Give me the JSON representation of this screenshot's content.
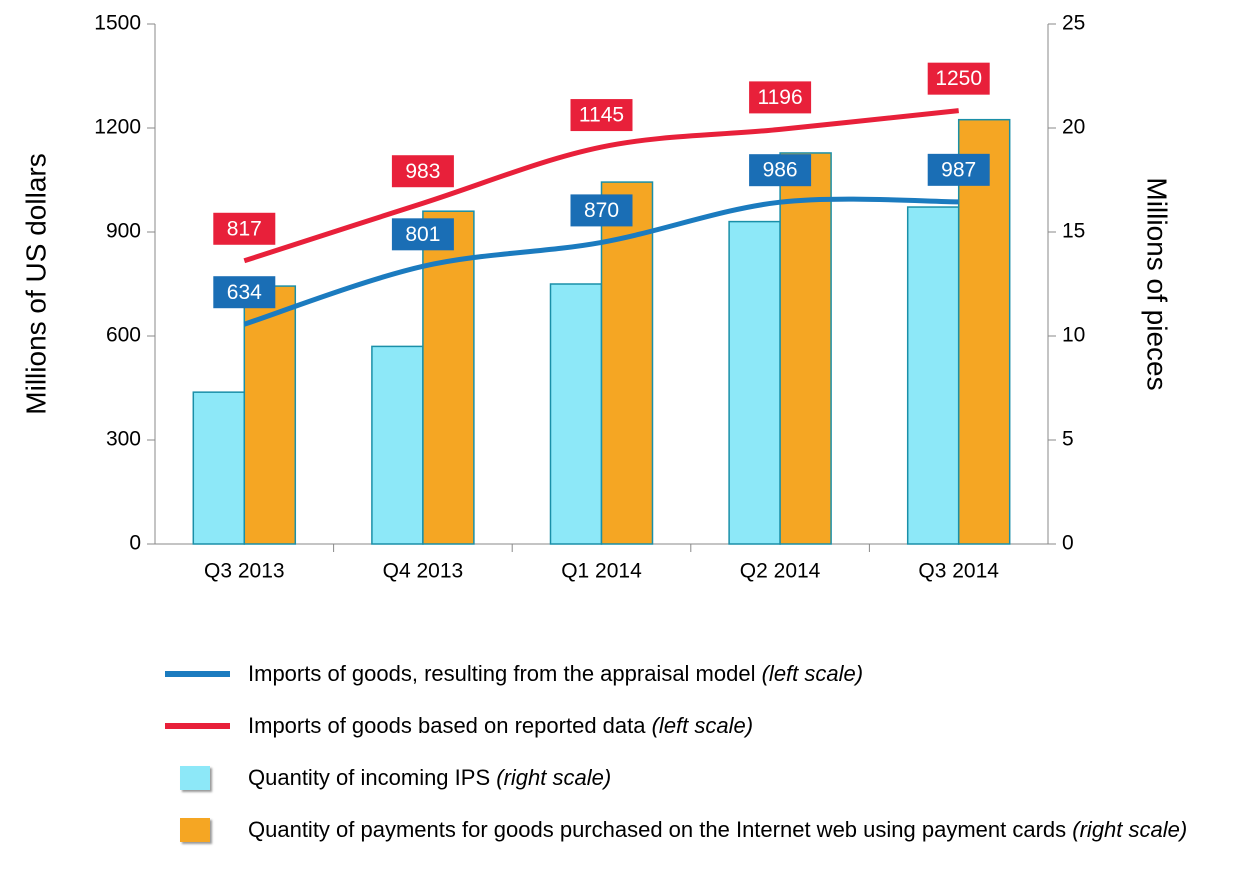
{
  "chart_data": {
    "type": "bar-line",
    "categories": [
      "Q3 2013",
      "Q4 2013",
      "Q1 2014",
      "Q2 2014",
      "Q3 2014"
    ],
    "y_label": "Millions of US dollars",
    "y2_label": "Millions of pieces",
    "ylim": [
      0,
      1500
    ],
    "yticks": [
      0,
      300,
      600,
      900,
      1200,
      1500
    ],
    "y2lim": [
      0,
      25
    ],
    "y2ticks": [
      0,
      5,
      10,
      15,
      20,
      25
    ],
    "series": [
      {
        "name": "Imports of goods, resulting from the appraisal model",
        "note": "(left scale)",
        "kind": "line",
        "axis": "y",
        "color": "#1b7bbf",
        "label_color": "#1a6eb5",
        "values": [
          634,
          801,
          870,
          986,
          987
        ]
      },
      {
        "name": "Imports of goods based on reported data",
        "note": "(left scale)",
        "kind": "line",
        "axis": "y",
        "color": "#e8203a",
        "label_color": "#e8203a",
        "values": [
          817,
          983,
          1145,
          1196,
          1250
        ]
      },
      {
        "name": "Quantity of incoming IPS",
        "note": "(right scale)",
        "kind": "bar",
        "axis": "y2",
        "color": "#8de8f8",
        "values": [
          7.3,
          9.5,
          12.5,
          15.5,
          16.2
        ]
      },
      {
        "name": "Quantity of payments for goods purchased on the Internet web using payment cards",
        "note": "(right scale)",
        "kind": "bar",
        "axis": "y2",
        "color": "#f5a623",
        "values": [
          12.4,
          16.0,
          17.4,
          18.8,
          20.4
        ]
      }
    ]
  }
}
